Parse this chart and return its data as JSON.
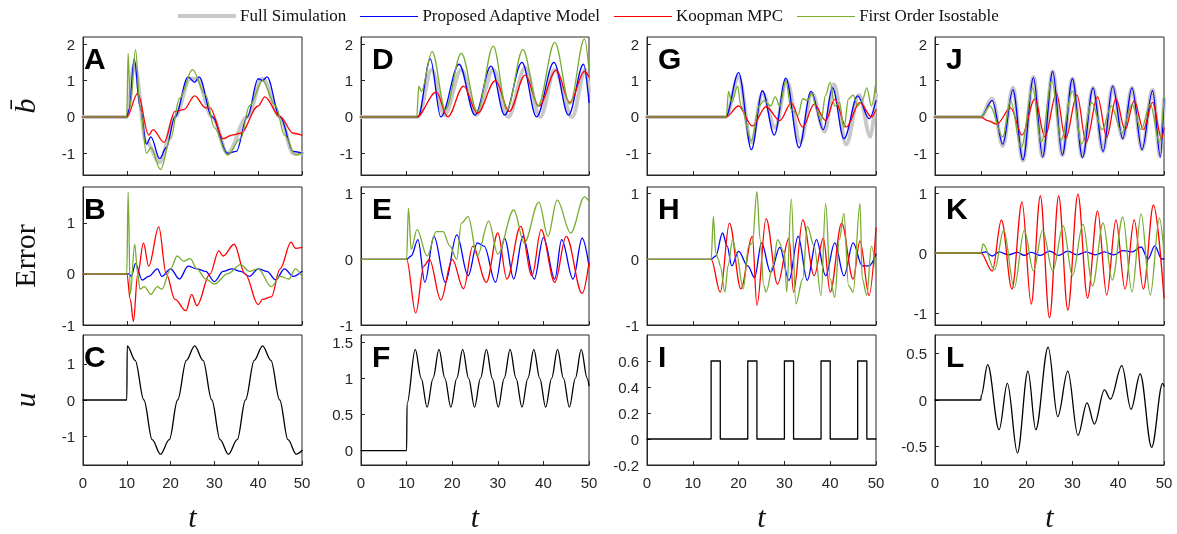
{
  "chart_data": [
    {
      "type": "line",
      "annotations": [
        "A"
      ],
      "ylabel": "b̄",
      "legend": "top",
      "tick_labels": "y",
      "xlim": [
        0,
        50
      ],
      "xticks": [
        0,
        10,
        20,
        30,
        40,
        50
      ],
      "ylim": [
        -1.6,
        2.2
      ],
      "yticks": [
        -1,
        0,
        1,
        2
      ],
      "series": [
        {
          "name": "Full Simulation",
          "color": "#c8c8c8",
          "x": [
            0,
            10,
            11.7,
            14.5,
            17.5,
            21,
            24.5,
            26,
            29.5,
            33,
            37.5,
            41,
            45,
            48,
            50
          ],
          "values": [
            0,
            0,
            1.45,
            -0.7,
            -1.25,
            0,
            1.05,
            1.05,
            0,
            -1.0,
            0,
            1.05,
            0,
            -1.0,
            -1.0
          ]
        },
        {
          "name": "Proposed Adaptive Model",
          "color": "#0000ff",
          "x": [
            0,
            10,
            10.5,
            11.7,
            13,
            14.5,
            15.5,
            17.5,
            19,
            21,
            24,
            25.5,
            26.5,
            29.5,
            33,
            35,
            37.5,
            40,
            41,
            42,
            45,
            48,
            50
          ],
          "values": [
            0,
            0,
            0.2,
            1.6,
            0.3,
            -0.75,
            -0.55,
            -1.15,
            -0.85,
            0,
            1.1,
            0.95,
            1.1,
            0,
            -1,
            -0.95,
            0,
            1.05,
            1.0,
            1.1,
            0,
            -0.95,
            -1.0
          ]
        },
        {
          "name": "Koopman MPC",
          "color": "#ff0000",
          "x": [
            0,
            10,
            12.5,
            15,
            16,
            18.5,
            21,
            23,
            25.5,
            28,
            29,
            32,
            34,
            36,
            40,
            41.5,
            45,
            48,
            50
          ],
          "values": [
            0,
            0,
            0.65,
            -0.5,
            -0.35,
            -0.7,
            0.15,
            0.2,
            0.58,
            0.25,
            0.25,
            -0.6,
            -0.5,
            -0.45,
            0.3,
            0.55,
            0,
            -0.45,
            -0.5
          ]
        },
        {
          "name": "First Order Isostable",
          "color": "#77ac30",
          "x": [
            0,
            10,
            10.3,
            10.8,
            12,
            13,
            14.5,
            15.5,
            17.7,
            20,
            22,
            25,
            28,
            30,
            33,
            36,
            38,
            41,
            44,
            46,
            48.5,
            50
          ],
          "values": [
            0,
            0,
            1.75,
            0.3,
            1.85,
            0.3,
            -1.0,
            -0.85,
            -1.45,
            -0.6,
            0.5,
            1.3,
            0.6,
            -0.3,
            -1.05,
            -0.6,
            0.3,
            1.0,
            0.3,
            -0.5,
            -1.05,
            -1.0
          ]
        }
      ]
    },
    {
      "type": "line",
      "annotations": [
        "B"
      ],
      "ylabel": "Error",
      "tick_labels": "y",
      "xlim": [
        0,
        50
      ],
      "xticks": [
        0,
        10,
        20,
        30,
        40,
        50
      ],
      "ylim": [
        -1,
        1.7
      ],
      "yticks": [
        -1,
        0,
        1
      ],
      "series": [
        {
          "name": "Proposed Adaptive Model",
          "color": "#0000ff",
          "x": [
            0,
            10,
            10.5,
            11,
            12,
            13.5,
            15,
            17,
            18,
            20,
            22,
            24,
            26,
            28,
            30,
            32,
            34,
            36,
            38,
            40,
            42,
            44,
            46,
            48,
            50
          ],
          "values": [
            0,
            0,
            0,
            -0.05,
            0.2,
            -0.12,
            -0.05,
            0.1,
            -0.05,
            0.1,
            -0.1,
            0.15,
            0.1,
            0.05,
            -0.15,
            0.05,
            0.1,
            0.05,
            -0.05,
            0.1,
            0.05,
            -0.12,
            0.1,
            -0.05,
            0.05
          ]
        },
        {
          "name": "Koopman MPC",
          "color": "#ff0000",
          "x": [
            0,
            10,
            10.8,
            11.5,
            12.5,
            13.8,
            15,
            17.3,
            19,
            21,
            23.5,
            24.8,
            26,
            29,
            31,
            32,
            34.5,
            37,
            40,
            41,
            43,
            45,
            47.5,
            48.5,
            50
          ],
          "values": [
            0,
            0,
            -0.5,
            -0.93,
            0,
            0.6,
            0.15,
            0.92,
            0,
            -0.5,
            -0.72,
            -0.4,
            -0.62,
            0,
            0.45,
            0.35,
            0.58,
            0,
            -0.6,
            -0.5,
            -0.45,
            0.1,
            0.62,
            0.5,
            0.52
          ]
        },
        {
          "name": "First Order Isostable",
          "color": "#77ac30",
          "x": [
            0,
            10,
            10.3,
            10.8,
            11.8,
            12.5,
            13,
            14,
            15.5,
            17,
            18,
            20,
            21.5,
            23,
            24.5,
            26,
            28,
            30,
            33,
            36,
            38,
            40,
            43,
            45,
            47,
            48.5,
            50
          ],
          "values": [
            0,
            0,
            1.6,
            -0.4,
            0.58,
            0,
            -0.3,
            -0.25,
            -0.4,
            -0.25,
            -0.3,
            0.1,
            0.35,
            0.25,
            0.3,
            0.1,
            -0.1,
            -0.2,
            0,
            0.18,
            0.05,
            0.1,
            -0.25,
            -0.05,
            -0.1,
            0.1,
            -0.05
          ]
        }
      ]
    },
    {
      "type": "line",
      "annotations": [
        "C"
      ],
      "ylabel": "u",
      "xlabel": "t",
      "xlim": [
        0,
        50
      ],
      "xticks": [
        0,
        10,
        20,
        30,
        40,
        50
      ],
      "ylim": [
        -1.8,
        1.8
      ],
      "yticks": [
        -1,
        0,
        1
      ],
      "series": [
        {
          "color": "#000000",
          "x": [
            0,
            10,
            10.1,
            11.9,
            13.9,
            15.8,
            17.7,
            19.7,
            21.6,
            23.6,
            25.5,
            27.4,
            29.4,
            31.3,
            33.2,
            35.2,
            37.1,
            39.1,
            41,
            42.9,
            44.9,
            46.8,
            48.7,
            50
          ],
          "values": [
            0,
            0,
            1.5,
            1.1,
            0,
            -1.1,
            -1.5,
            -1.1,
            0,
            1.1,
            1.5,
            1.1,
            0,
            -1.1,
            -1.5,
            -1.1,
            0,
            1.1,
            1.5,
            1.1,
            0,
            -1.1,
            -1.5,
            -1.4
          ]
        }
      ]
    },
    {
      "type": "line",
      "annotations": [
        "D"
      ],
      "tick_labels": "y",
      "xlim": [
        0,
        50
      ],
      "xticks": [
        0,
        10,
        20,
        30,
        40,
        50
      ],
      "ylim": [
        -1.6,
        2.2
      ],
      "yticks": [
        -1,
        0,
        1,
        2
      ],
      "series": [
        {
          "name": "Full Simulation",
          "color": "#c8c8c8",
          "x": [
            0,
            12.5,
            15.5,
            18.3,
            22,
            25.3,
            29,
            32.3,
            36,
            39.3,
            42.5,
            46.3,
            49.2,
            50
          ],
          "values": [
            0,
            0,
            1.3,
            0.05,
            1.3,
            0.05,
            1.3,
            0,
            1.35,
            0,
            1.3,
            0,
            1.3,
            0.7
          ]
        },
        {
          "name": "Proposed Adaptive Model",
          "color": "#0000ff",
          "x": [
            0,
            12.5,
            15.2,
            17.5,
            21.5,
            25,
            28.5,
            31.5,
            35.3,
            38.5,
            42.3,
            45.5,
            48.8,
            50
          ],
          "values": [
            0,
            0,
            1.6,
            0,
            1.45,
            0.05,
            1.4,
            0.05,
            1.5,
            0,
            1.5,
            0.05,
            1.45,
            0.4
          ]
        },
        {
          "name": "Koopman MPC",
          "color": "#ff0000",
          "x": [
            0,
            12.2,
            16.5,
            19,
            22.5,
            25.5,
            29.5,
            32.5,
            36,
            39,
            42.8,
            45.8,
            49,
            50
          ],
          "values": [
            0,
            0,
            0.68,
            0,
            0.85,
            0.1,
            1.0,
            0.15,
            1.15,
            0.3,
            1.28,
            0.4,
            1.25,
            1.1
          ]
        },
        {
          "name": "First Order Isostable",
          "color": "#77ac30",
          "x": [
            0,
            12.2,
            12.7,
            13.2,
            15.6,
            18.5,
            22,
            25.5,
            29,
            32,
            35.5,
            38.8,
            42.5,
            45.8,
            49,
            50
          ],
          "values": [
            0,
            0,
            0.85,
            0.7,
            1.8,
            0.2,
            1.75,
            0.15,
            1.95,
            0.2,
            1.85,
            0.3,
            2.05,
            0.35,
            2.15,
            1.3
          ]
        }
      ]
    },
    {
      "type": "line",
      "annotations": [
        "E"
      ],
      "tick_labels": "y",
      "xlim": [
        0,
        50
      ],
      "xticks": [
        0,
        10,
        20,
        30,
        40,
        50
      ],
      "ylim": [
        -1,
        1.1
      ],
      "yticks": [
        -1,
        0,
        1
      ],
      "series": [
        {
          "name": "Proposed Adaptive Model",
          "color": "#0000ff",
          "x": [
            0,
            10,
            11,
            12.5,
            14,
            16,
            18.5,
            21,
            23.5,
            25.5,
            27,
            29.5,
            31.5,
            33.5,
            35.5,
            38,
            40,
            42.5,
            44,
            46.5,
            48.5,
            50
          ],
          "values": [
            0,
            0,
            0.05,
            0.3,
            -0.35,
            0.35,
            -0.35,
            0.37,
            -0.25,
            0.25,
            0.2,
            -0.35,
            0.32,
            -0.3,
            0.35,
            -0.3,
            0.33,
            -0.3,
            0.3,
            -0.3,
            0.32,
            -0.1
          ]
        },
        {
          "name": "Koopman MPC",
          "color": "#ff0000",
          "x": [
            0,
            10,
            12,
            13.8,
            15,
            17.5,
            20,
            22.5,
            24.5,
            27.5,
            30,
            32,
            35,
            37.5,
            39.5,
            42.5,
            45,
            48.5,
            50
          ],
          "values": [
            0,
            0,
            -0.82,
            -0.1,
            0,
            -0.62,
            0,
            -0.45,
            0.2,
            -0.35,
            0.4,
            -0.3,
            0.5,
            -0.25,
            0.45,
            -0.35,
            0.35,
            -0.52,
            -0.05
          ]
        },
        {
          "name": "First Order Isostable",
          "color": "#77ac30",
          "x": [
            0,
            10,
            10.4,
            11,
            12.3,
            14.5,
            16.5,
            18,
            19.5,
            21,
            22,
            23.5,
            25.5,
            28,
            30,
            33.5,
            35.8,
            39,
            41,
            43,
            46,
            49,
            50
          ],
          "values": [
            0,
            0,
            0.78,
            0.15,
            0.45,
            0.05,
            0.42,
            0.42,
            0.2,
            0,
            0.55,
            0.65,
            0.05,
            0.58,
            0.08,
            0.75,
            0.25,
            0.87,
            0.35,
            0.9,
            0.4,
            0.95,
            0.88
          ]
        }
      ]
    },
    {
      "type": "line",
      "annotations": [
        "F"
      ],
      "xlabel": "t",
      "xlim": [
        0,
        50
      ],
      "xticks": [
        0,
        10,
        20,
        30,
        40,
        50
      ],
      "ylim": [
        -0.2,
        1.6
      ],
      "yticks": [
        0,
        0.5,
        1,
        1.5
      ],
      "series": [
        {
          "color": "#000000",
          "x": [
            0,
            10,
            10.1,
            11.9,
            13.2,
            14.5,
            15.8,
            17.1,
            18.4,
            19.7,
            21,
            22.3,
            23.6,
            24.9,
            26.2,
            27.5,
            28.8,
            30.1,
            31.4,
            32.7,
            34,
            35.3,
            36.6,
            37.9,
            39.2,
            40.5,
            41.8,
            43.1,
            44.4,
            45.7,
            47,
            48.3,
            49.6,
            50
          ],
          "values": [
            0,
            0,
            0.65,
            1.4,
            1.0,
            0.6,
            1.0,
            1.4,
            1.0,
            0.6,
            1.0,
            1.4,
            1.0,
            0.6,
            1.0,
            1.4,
            1.0,
            0.6,
            1.0,
            1.4,
            1.0,
            0.6,
            1.0,
            1.4,
            1.0,
            0.6,
            1.0,
            1.4,
            1.0,
            0.6,
            1.0,
            1.4,
            1.0,
            0.9
          ]
        }
      ]
    },
    {
      "type": "line",
      "annotations": [
        "G"
      ],
      "tick_labels": "y",
      "xlim": [
        0,
        50
      ],
      "xticks": [
        0,
        10,
        20,
        30,
        40,
        50
      ],
      "ylim": [
        -1.6,
        2.2
      ],
      "yticks": [
        -1,
        0,
        1,
        2
      ],
      "series": [
        {
          "name": "Full Simulation",
          "color": "#c8c8c8",
          "x": [
            0,
            17.2,
            20,
            22.8,
            25.2,
            28,
            30.5,
            33.5,
            36,
            38.8,
            40.8,
            43.5,
            46.3,
            48.8,
            50
          ],
          "values": [
            0,
            0,
            1.1,
            -0.7,
            0.65,
            -0.3,
            1.0,
            -0.7,
            0.65,
            -0.4,
            0.9,
            -0.75,
            0.6,
            -0.55,
            0.6
          ]
        },
        {
          "name": "Proposed Adaptive Model",
          "color": "#0000ff",
          "x": [
            0,
            17.2,
            20,
            22.8,
            25.2,
            27.8,
            30.3,
            33.2,
            35.8,
            38.5,
            40.5,
            43,
            46,
            48.5,
            50
          ],
          "values": [
            0,
            0,
            1.22,
            -0.9,
            0.72,
            -0.5,
            1.07,
            -0.85,
            0.7,
            -0.35,
            0.8,
            -0.6,
            0.58,
            -0.05,
            0.45
          ]
        },
        {
          "name": "Koopman MPC",
          "color": "#ff0000",
          "x": [
            0,
            17.3,
            20,
            23,
            26,
            29,
            31.5,
            34,
            36.5,
            39,
            41,
            43.5,
            46.5,
            49,
            50
          ],
          "values": [
            0,
            0,
            0.3,
            -0.25,
            0.28,
            -0.1,
            0.38,
            -0.28,
            0.35,
            -0.1,
            0.48,
            -0.28,
            0.4,
            0,
            0.2
          ]
        },
        {
          "name": "First Order Isostable",
          "color": "#77ac30",
          "x": [
            0,
            17.3,
            17.8,
            18.5,
            19.8,
            20.5,
            22.8,
            24.5,
            25.5,
            27,
            28,
            29,
            30.3,
            31.5,
            33,
            34,
            35,
            36,
            37,
            38,
            39,
            40,
            41,
            42,
            43,
            44,
            45,
            46,
            47,
            48,
            49,
            50
          ],
          "values": [
            0,
            0,
            0.7,
            0.4,
            0.85,
            0.3,
            -0.65,
            0.3,
            0.45,
            0.3,
            0.55,
            0.3,
            1.0,
            0.2,
            0.05,
            0.5,
            0.45,
            0.65,
            0.2,
            -0.1,
            0.6,
            0.95,
            0.3,
            0.4,
            -0.3,
            0.5,
            0.6,
            0.3,
            0.45,
            0.8,
            0.3,
            1.0
          ]
        }
      ]
    },
    {
      "type": "line",
      "annotations": [
        "H"
      ],
      "tick_labels": "y",
      "xlim": [
        0,
        50
      ],
      "xticks": [
        0,
        10,
        20,
        30,
        40,
        50
      ],
      "ylim": [
        -1,
        1.1
      ],
      "yticks": [
        -1,
        0,
        1
      ],
      "series": [
        {
          "name": "Proposed Adaptive Model",
          "color": "#0000ff",
          "x": [
            0,
            14,
            15,
            16.5,
            17.5,
            18.5,
            20,
            22,
            23.5,
            25,
            27,
            29,
            31,
            33,
            35,
            37,
            39,
            41,
            43,
            45,
            47,
            48.5,
            50
          ],
          "values": [
            0,
            0,
            0.05,
            0.4,
            0.2,
            -0.1,
            0.12,
            -0.1,
            -0.28,
            0.25,
            -0.2,
            0.18,
            -0.32,
            0.35,
            -0.32,
            0.3,
            -0.25,
            0.25,
            -0.25,
            0.25,
            -0.1,
            -0.1,
            0.08
          ]
        },
        {
          "name": "Koopman MPC",
          "color": "#ff0000",
          "x": [
            0,
            14,
            16,
            18,
            20.5,
            23,
            24,
            26,
            28.5,
            31,
            32,
            34,
            36.5,
            38.5,
            40,
            42.5,
            45,
            46.5,
            48.5,
            50
          ],
          "values": [
            0,
            0,
            -0.5,
            0.55,
            -0.45,
            0.35,
            -0.7,
            0.62,
            -0.38,
            0.32,
            -0.5,
            0.6,
            -0.25,
            0.32,
            -0.5,
            0.55,
            -0.3,
            0.28,
            -0.55,
            0.48
          ]
        },
        {
          "name": "First Order Isostable",
          "color": "#77ac30",
          "x": [
            0,
            14,
            14.5,
            15,
            15.6,
            16,
            17,
            17.7,
            18.7,
            19.5,
            21,
            22.2,
            23,
            24,
            24.7,
            25.5,
            26,
            27.5,
            28.5,
            30,
            30.5,
            31.5,
            32.5,
            34,
            35,
            36.5,
            38,
            39,
            40,
            41,
            42,
            43,
            44,
            45,
            46.5,
            47,
            48,
            49,
            50
          ],
          "values": [
            0,
            0,
            0.65,
            0.1,
            0,
            -0.1,
            -0.5,
            -0.1,
            0.3,
            0.1,
            -0.45,
            0.2,
            0.25,
            1.03,
            0.3,
            -0.4,
            -0.5,
            -0.1,
            0.3,
            0.1,
            -0.5,
            0.92,
            -0.68,
            -0.3,
            0.5,
            0.2,
            -0.55,
            0.85,
            -0.3,
            -0.58,
            0.3,
            0.7,
            -0.4,
            -0.5,
            0.85,
            -0.3,
            -0.55,
            0.2,
            -0.2
          ]
        }
      ]
    },
    {
      "type": "step",
      "annotations": [
        "I"
      ],
      "xlabel": "t",
      "xlim": [
        0,
        50
      ],
      "xticks": [
        0,
        10,
        20,
        30,
        40,
        50
      ],
      "ylim": [
        -0.2,
        0.8
      ],
      "yticks": [
        -0.2,
        0,
        0.2,
        0.4,
        0.6
      ],
      "series": [
        {
          "color": "#000000",
          "x": [
            0,
            14,
            16,
            22,
            24,
            30,
            32,
            38,
            40,
            46,
            48,
            50
          ],
          "values": [
            0,
            0.6,
            0,
            0.6,
            0,
            0.6,
            0,
            0.6,
            0,
            0.6,
            0,
            0
          ]
        }
      ]
    },
    {
      "type": "line",
      "annotations": [
        "J"
      ],
      "tick_labels": "y",
      "xlim": [
        0,
        50
      ],
      "xticks": [
        0,
        10,
        20,
        30,
        40,
        50
      ],
      "ylim": [
        -1.6,
        2.2
      ],
      "yticks": [
        -1,
        0,
        1,
        2
      ],
      "series": [
        {
          "name": "Full Simulation",
          "color": "#c8c8c8",
          "x": [
            0,
            10,
            12.5,
            14.8,
            17,
            19.2,
            21.5,
            23.5,
            25.7,
            27.8,
            30,
            32.2,
            34.5,
            36.7,
            38.8,
            41,
            43,
            45.2,
            47.5,
            49.2,
            50
          ],
          "values": [
            0,
            0,
            0.5,
            -0.8,
            0.8,
            -1.2,
            1.1,
            -1.1,
            1.25,
            -1.05,
            1.05,
            -1.1,
            0.8,
            -0.95,
            0.85,
            -0.6,
            0.8,
            -0.9,
            0.75,
            -1.1,
            0.5
          ]
        },
        {
          "name": "Proposed Adaptive Model",
          "color": "#0000ff",
          "x": [
            0,
            10,
            12.5,
            14.8,
            17,
            19.2,
            21.5,
            23.5,
            25.7,
            27.8,
            30,
            32.2,
            34.5,
            36.7,
            38.8,
            41,
            43,
            45.2,
            47.5,
            49.2,
            50
          ],
          "values": [
            0,
            0,
            0.45,
            -0.75,
            0.75,
            -1.18,
            1.08,
            -1.1,
            1.25,
            -1.05,
            1.05,
            -1.12,
            0.8,
            -0.95,
            0.85,
            -0.6,
            0.8,
            -0.9,
            0.72,
            -1.1,
            0.5
          ]
        },
        {
          "name": "Koopman MPC",
          "color": "#ff0000",
          "x": [
            0,
            10,
            11.5,
            13.5,
            16.5,
            19,
            21.8,
            24,
            26.5,
            28.5,
            31,
            33,
            35.5,
            37.5,
            39.5,
            41.5,
            43.5,
            45.5,
            47.5,
            49.5,
            50
          ],
          "values": [
            0,
            0,
            -0.1,
            -0.2,
            0.25,
            -0.5,
            0.5,
            -0.55,
            0.65,
            -0.6,
            0.6,
            -0.7,
            0.55,
            -0.55,
            0.5,
            -0.35,
            0.45,
            -0.35,
            0.4,
            -0.6,
            -0.3
          ]
        },
        {
          "name": "First Order Isostable",
          "color": "#77ac30",
          "x": [
            0,
            10,
            12,
            14.8,
            16.5,
            18.8,
            21.3,
            23.2,
            25.5,
            27.5,
            30,
            32,
            34.2,
            36.5,
            38.5,
            40.8,
            43,
            45,
            47,
            49,
            50
          ],
          "values": [
            0,
            0,
            0.3,
            -0.55,
            0.45,
            -0.85,
            0.8,
            -0.7,
            1.0,
            -0.65,
            0.7,
            -0.75,
            0.4,
            -0.35,
            0.3,
            -0.45,
            0.35,
            -0.35,
            0.35,
            -0.7,
            0.55
          ]
        }
      ]
    },
    {
      "type": "line",
      "annotations": [
        "K"
      ],
      "tick_labels": "y",
      "xlim": [
        0,
        50
      ],
      "xticks": [
        0,
        10,
        20,
        30,
        40,
        50
      ],
      "ylim": [
        -1.2,
        1.1
      ],
      "yticks": [
        -1,
        0,
        1
      ],
      "series": [
        {
          "name": "Proposed Adaptive Model",
          "color": "#0000ff",
          "x": [
            0,
            10,
            11,
            12.5,
            14,
            16,
            18,
            19.5,
            21,
            23,
            25,
            27,
            29,
            31,
            33,
            35,
            37,
            39,
            41,
            43,
            45,
            46.5,
            48,
            49.5,
            50
          ],
          "values": [
            0,
            0,
            0.02,
            -0.05,
            0.02,
            -0.03,
            0.01,
            -0.04,
            0.01,
            -0.04,
            0.03,
            -0.04,
            0.03,
            -0.03,
            0.02,
            -0.03,
            0.02,
            -0.03,
            0.04,
            0.02,
            0.1,
            -0.1,
            0.12,
            -0.1,
            -0.1
          ]
        },
        {
          "name": "Koopman MPC",
          "color": "#ff0000",
          "x": [
            0,
            10,
            12.5,
            14.5,
            16.8,
            19,
            21,
            23,
            25,
            27,
            29,
            31.2,
            33.3,
            35.5,
            37.5,
            39.5,
            41.5,
            43.5,
            45.5,
            47.7,
            50
          ],
          "values": [
            0,
            0,
            -0.3,
            0.55,
            -0.6,
            0.85,
            -0.85,
            0.95,
            -1.08,
            0.95,
            -0.95,
            0.98,
            -0.75,
            0.7,
            -0.7,
            0.55,
            -0.6,
            0.55,
            -0.6,
            0.8,
            -0.75
          ]
        },
        {
          "name": "First Order Isostable",
          "color": "#77ac30",
          "x": [
            0,
            10,
            10.5,
            13,
            15,
            17.3,
            19.5,
            21.5,
            23.5,
            25.7,
            28,
            30,
            32.3,
            34.4,
            36.7,
            38.7,
            41,
            43,
            45,
            47,
            49,
            50
          ],
          "values": [
            0,
            0,
            0.15,
            -0.28,
            0.38,
            -0.58,
            0.38,
            -0.3,
            0.38,
            -0.3,
            0.45,
            -0.38,
            0.48,
            -0.55,
            0.5,
            -0.45,
            0.6,
            -0.65,
            0.65,
            -0.7,
            0.58,
            0
          ]
        }
      ]
    },
    {
      "type": "line",
      "annotations": [
        "L"
      ],
      "xlabel": "t",
      "xlim": [
        0,
        50
      ],
      "xticks": [
        0,
        10,
        20,
        30,
        40,
        50
      ],
      "ylim": [
        -0.7,
        0.7
      ],
      "yticks": [
        -0.5,
        0,
        0.5
      ],
      "series": [
        {
          "color": "#000000",
          "x": [
            0,
            10,
            10.1,
            11.5,
            14,
            15.8,
            18,
            20.3,
            22,
            24.7,
            26.8,
            29,
            31.2,
            33.2,
            34.8,
            37,
            38.3,
            40.8,
            42.8,
            44.8,
            47.3,
            49.7,
            50
          ],
          "values": [
            0,
            0,
            0.05,
            0.38,
            -0.32,
            0.18,
            -0.57,
            0.31,
            -0.32,
            0.57,
            -0.18,
            0.31,
            -0.38,
            -0.03,
            -0.26,
            0.11,
            0.01,
            0.37,
            -0.1,
            0.28,
            -0.51,
            0.18,
            0.15
          ]
        }
      ]
    }
  ]
}
